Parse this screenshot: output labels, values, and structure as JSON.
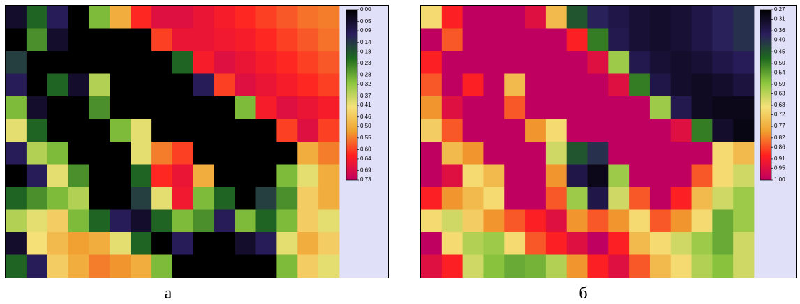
{
  "chart_data": [
    {
      "type": "heatmap",
      "caption": "а",
      "colorscale": [
        "#000000",
        "#2a1d5c",
        "#1e6a1e",
        "#8cc63f",
        "#f5e27a",
        "#f0a030",
        "#ff2020",
        "#c00060"
      ],
      "zlim": [
        0,
        0.73
      ],
      "zticks": [
        {
          "value": 0,
          "label": "0.00"
        },
        0.05,
        0.09,
        0.14,
        0.18,
        0.23,
        0.28,
        0.32,
        0.37,
        0.41,
        0.46,
        {
          "value": 0.5,
          "label": "0.50"
        },
        0.55,
        {
          "value": 0.6,
          "label": "0.60"
        },
        0.64,
        0.69,
        0.73
      ],
      "z": [
        [
          0.05,
          0.2,
          0.1,
          0.0,
          0.3,
          0.5,
          0.62,
          0.68,
          0.68,
          0.66,
          0.64,
          0.62,
          0.6,
          0.58,
          0.56,
          0.55
        ],
        [
          0.0,
          0.25,
          0.05,
          0.0,
          0.0,
          0.0,
          0.0,
          0.6,
          0.66,
          0.66,
          0.65,
          0.64,
          0.62,
          0.6,
          0.58,
          0.56
        ],
        [
          0.15,
          0.0,
          0.0,
          0.0,
          0.0,
          0.0,
          0.0,
          0.0,
          0.2,
          0.64,
          0.68,
          0.66,
          0.64,
          0.62,
          0.6,
          0.58
        ],
        [
          0.1,
          0.0,
          0.2,
          0.05,
          0.35,
          0.0,
          0.0,
          0.0,
          0.0,
          0.1,
          0.6,
          0.68,
          0.66,
          0.64,
          0.62,
          0.6
        ],
        [
          0.3,
          0.05,
          0.0,
          0.0,
          0.25,
          0.0,
          0.0,
          0.0,
          0.0,
          0.0,
          0.0,
          0.3,
          0.64,
          0.68,
          0.66,
          0.64
        ],
        [
          0.4,
          0.2,
          0.0,
          0.0,
          0.0,
          0.3,
          0.4,
          0.0,
          0.0,
          0.0,
          0.0,
          0.0,
          0.0,
          0.6,
          0.68,
          0.6
        ],
        [
          0.1,
          0.35,
          0.3,
          0.0,
          0.0,
          0.0,
          0.4,
          0.55,
          0.6,
          0.0,
          0.0,
          0.0,
          0.0,
          0.0,
          0.5,
          0.55
        ],
        [
          0.0,
          0.1,
          0.4,
          0.25,
          0.0,
          0.0,
          0.2,
          0.62,
          0.66,
          0.5,
          0.0,
          0.0,
          0.0,
          0.3,
          0.4,
          0.5
        ],
        [
          0.2,
          0.25,
          0.3,
          0.35,
          0.0,
          0.0,
          0.15,
          0.4,
          0.65,
          0.3,
          0.2,
          0.0,
          0.15,
          0.25,
          0.45,
          0.5
        ],
        [
          0.35,
          0.4,
          0.45,
          0.3,
          0.2,
          0.1,
          0.05,
          0.2,
          0.3,
          0.25,
          0.1,
          0.3,
          0.2,
          0.3,
          0.45,
          0.4
        ],
        [
          0.05,
          0.42,
          0.48,
          0.52,
          0.5,
          0.4,
          0.2,
          0.0,
          0.1,
          0.0,
          0.0,
          0.05,
          0.1,
          0.4,
          0.5,
          0.45
        ],
        [
          0.2,
          0.1,
          0.45,
          0.5,
          0.55,
          0.53,
          0.5,
          0.3,
          0.0,
          0.0,
          0.0,
          0.0,
          0.0,
          0.3,
          0.45,
          0.4
        ]
      ]
    },
    {
      "type": "heatmap",
      "caption": "б",
      "colorscale": [
        "#000000",
        "#2a1d5c",
        "#1e6a1e",
        "#8cc63f",
        "#f5e27a",
        "#f0a030",
        "#ff2020",
        "#c00060"
      ],
      "zlim": [
        0.27,
        1
      ],
      "zticks": [
        0.27,
        0.31,
        0.36,
        {
          "value": 0.4,
          "label": "0.40"
        },
        0.45,
        {
          "value": 0.5,
          "label": "0.50"
        },
        0.54,
        0.59,
        0.63,
        0.68,
        0.72,
        0.77,
        0.82,
        0.86,
        0.91,
        0.95,
        {
          "value": 1,
          "label": "1.00"
        }
      ],
      "z": [
        [
          0.7,
          0.9,
          1.0,
          1.0,
          1.0,
          0.95,
          0.75,
          0.45,
          0.38,
          0.35,
          0.33,
          0.32,
          0.33,
          0.35,
          0.38,
          0.4
        ],
        [
          1.0,
          0.85,
          1.0,
          1.0,
          1.0,
          1.0,
          1.0,
          0.9,
          0.5,
          0.36,
          0.33,
          0.32,
          0.33,
          0.35,
          0.38,
          0.4
        ],
        [
          0.9,
          1.0,
          1.0,
          1.0,
          1.0,
          1.0,
          1.0,
          1.0,
          0.95,
          0.6,
          0.36,
          0.33,
          0.32,
          0.33,
          0.35,
          0.37
        ],
        [
          0.85,
          1.0,
          0.9,
          1.0,
          0.75,
          1.0,
          1.0,
          1.0,
          1.0,
          0.95,
          0.5,
          0.35,
          0.32,
          0.31,
          0.32,
          0.34
        ],
        [
          0.8,
          0.95,
          1.0,
          1.0,
          0.85,
          1.0,
          1.0,
          1.0,
          1.0,
          1.0,
          1.0,
          0.6,
          0.36,
          0.31,
          0.3,
          0.3
        ],
        [
          0.72,
          0.85,
          1.0,
          1.0,
          1.0,
          0.8,
          0.7,
          1.0,
          1.0,
          1.0,
          1.0,
          1.0,
          0.95,
          0.5,
          0.32,
          0.29
        ],
        [
          1.0,
          0.75,
          0.8,
          1.0,
          1.0,
          1.0,
          0.65,
          0.45,
          0.4,
          1.0,
          1.0,
          1.0,
          1.0,
          1.0,
          0.7,
          0.75
        ],
        [
          1.0,
          0.95,
          0.7,
          0.75,
          1.0,
          1.0,
          0.8,
          0.35,
          0.3,
          0.6,
          1.0,
          1.0,
          1.0,
          0.85,
          0.7,
          0.65
        ],
        [
          0.9,
          0.8,
          0.75,
          0.7,
          1.0,
          1.0,
          0.85,
          0.6,
          0.35,
          0.65,
          0.85,
          1.0,
          0.9,
          0.75,
          0.65,
          0.6
        ],
        [
          0.7,
          0.65,
          0.72,
          0.8,
          0.85,
          0.9,
          0.95,
          0.8,
          0.85,
          0.8,
          0.7,
          0.85,
          0.8,
          0.7,
          0.55,
          0.6
        ],
        [
          1.0,
          0.7,
          0.62,
          0.6,
          0.7,
          0.85,
          0.9,
          0.95,
          1.0,
          0.9,
          0.75,
          0.7,
          0.65,
          0.6,
          0.55,
          0.65
        ],
        [
          0.95,
          0.9,
          0.65,
          0.58,
          0.55,
          0.56,
          0.62,
          0.8,
          0.9,
          0.95,
          0.85,
          0.75,
          0.7,
          0.62,
          0.58,
          0.65
        ]
      ]
    }
  ]
}
